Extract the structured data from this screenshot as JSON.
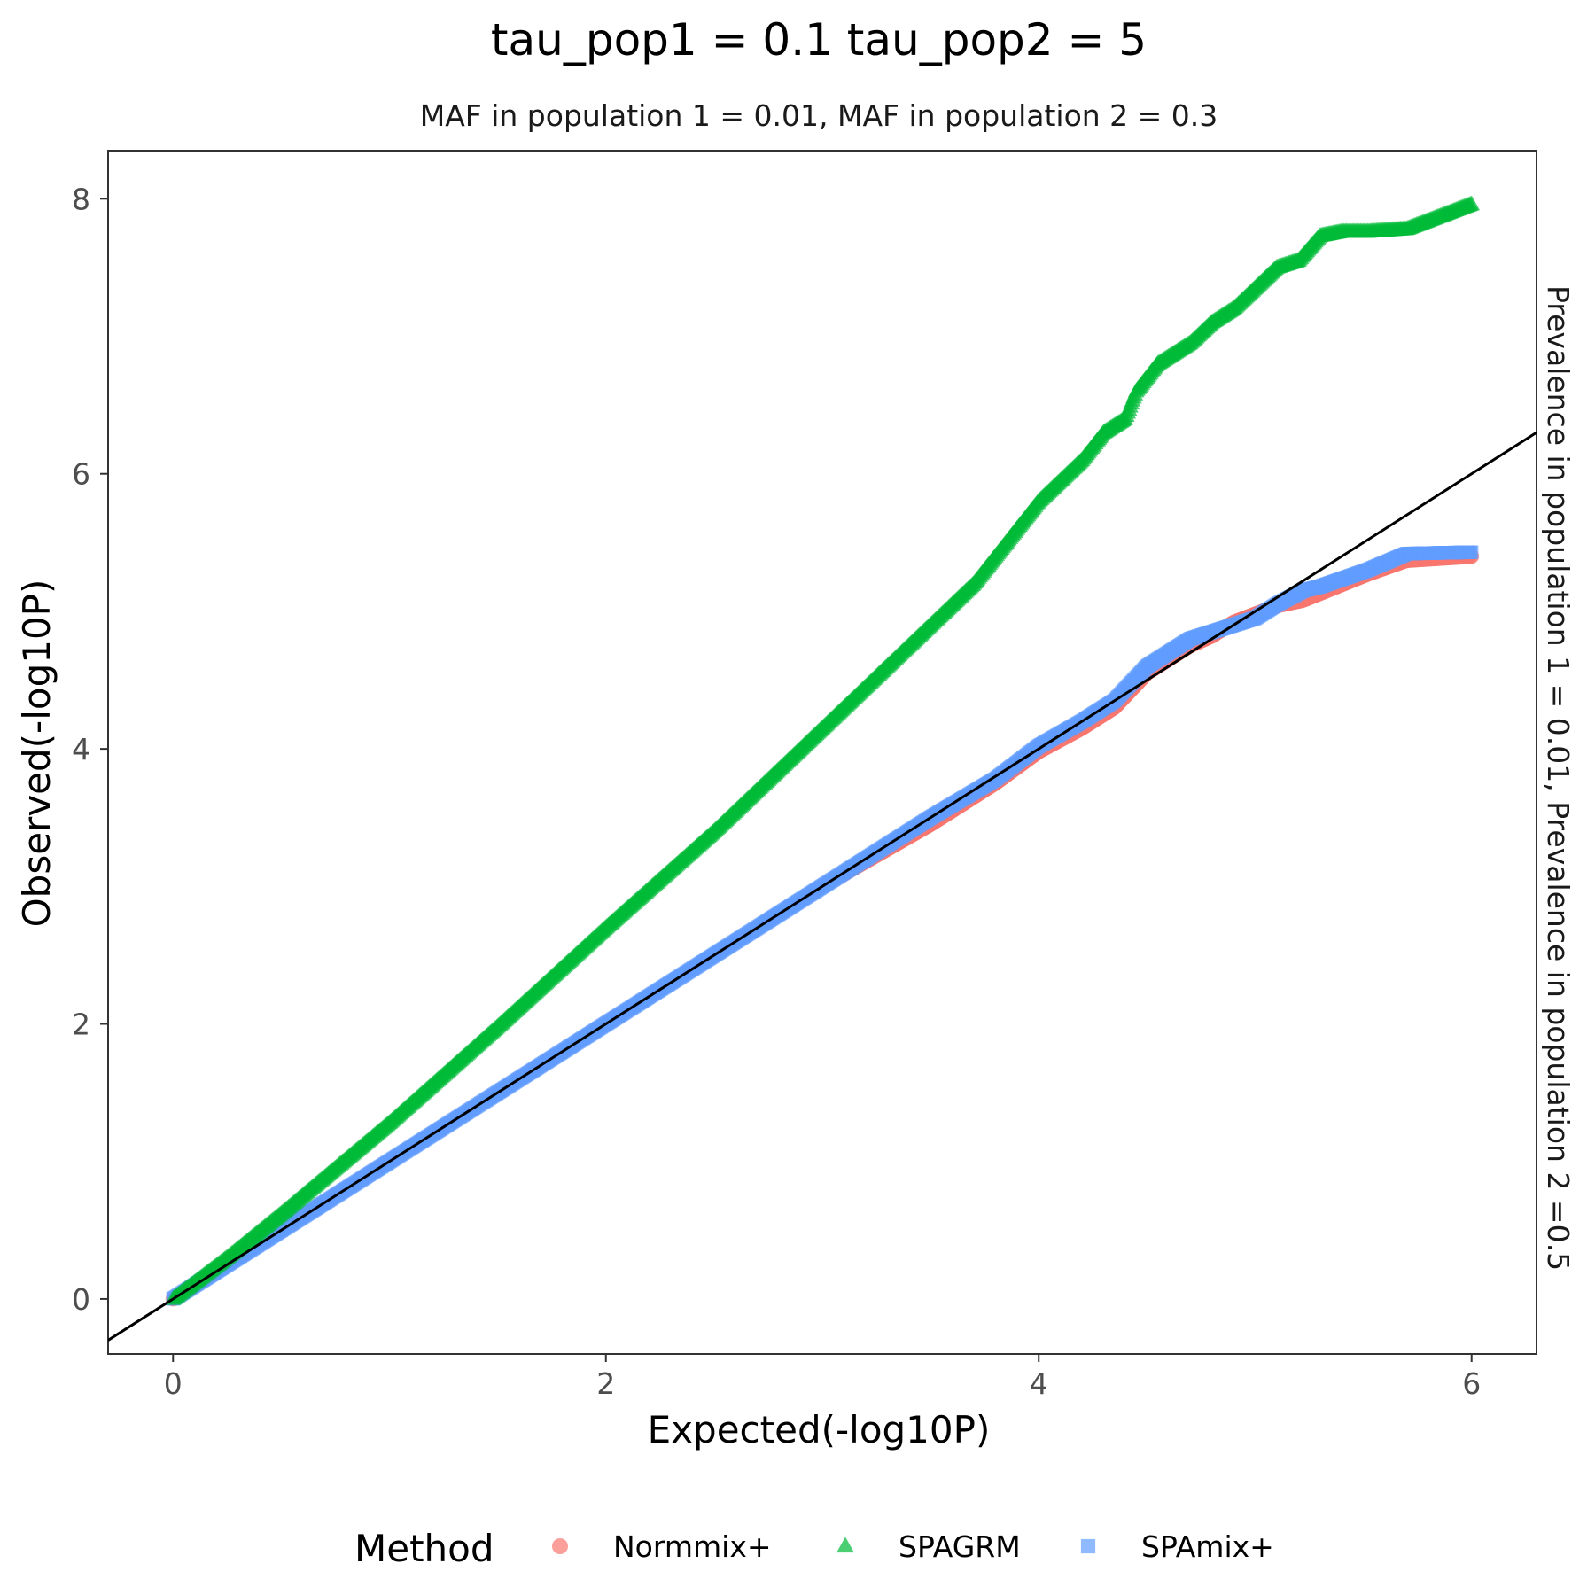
{
  "chart_data": {
    "type": "scatter",
    "title": "tau_pop1 = 0.1 tau_pop2 = 5",
    "subtitle": "MAF in population 1 = 0.01, MAF in population 2 = 0.3",
    "facet_label": "Prevalence in population 1 = 0.01, Prevalence in population 2 =0.5",
    "xlabel": "Expected(-log10P)",
    "ylabel": "Observed(-log10P)",
    "xlim": [
      -0.3,
      6.3
    ],
    "ylim": [
      -0.4,
      8.35
    ],
    "x_ticks": [
      0,
      2,
      4,
      6
    ],
    "y_ticks": [
      0,
      2,
      4,
      6,
      8
    ],
    "grid": false,
    "reference_line": {
      "slope": 1,
      "intercept": 0,
      "color": "#000000"
    },
    "legend": {
      "title": "Method",
      "position": "bottom"
    },
    "series": [
      {
        "name": "Normmix+",
        "shape": "circle",
        "color": "#F8766D",
        "points": [
          [
            0,
            0
          ],
          [
            0.25,
            0.25
          ],
          [
            0.5,
            0.5
          ],
          [
            1,
            1
          ],
          [
            1.5,
            1.5
          ],
          [
            2,
            2
          ],
          [
            2.5,
            2.5
          ],
          [
            3,
            3
          ],
          [
            3.5,
            3.45
          ],
          [
            3.8,
            3.75
          ],
          [
            4,
            3.98
          ],
          [
            4.2,
            4.15
          ],
          [
            4.35,
            4.3
          ],
          [
            4.5,
            4.55
          ],
          [
            4.6,
            4.65
          ],
          [
            4.7,
            4.75
          ],
          [
            4.8,
            4.82
          ],
          [
            4.9,
            4.92
          ],
          [
            5,
            4.98
          ],
          [
            5.1,
            5.04
          ],
          [
            5.22,
            5.08
          ],
          [
            5.3,
            5.13
          ],
          [
            5.52,
            5.27
          ],
          [
            5.7,
            5.37
          ],
          [
            6,
            5.4
          ]
        ]
      },
      {
        "name": "SPAGRM",
        "shape": "triangle",
        "color": "#00BA38",
        "points": [
          [
            0,
            0
          ],
          [
            0.25,
            0.3
          ],
          [
            0.5,
            0.62
          ],
          [
            1,
            1.28
          ],
          [
            1.5,
            1.98
          ],
          [
            2,
            2.7
          ],
          [
            2.5,
            3.4
          ],
          [
            3,
            4.15
          ],
          [
            3.3,
            4.6
          ],
          [
            3.5,
            4.9
          ],
          [
            3.7,
            5.2
          ],
          [
            3.8,
            5.4
          ],
          [
            3.9,
            5.6
          ],
          [
            4,
            5.8
          ],
          [
            4.2,
            6.1
          ],
          [
            4.3,
            6.3
          ],
          [
            4.4,
            6.4
          ],
          [
            4.45,
            6.6
          ],
          [
            4.55,
            6.8
          ],
          [
            4.7,
            6.95
          ],
          [
            4.8,
            7.1
          ],
          [
            4.9,
            7.2
          ],
          [
            5,
            7.35
          ],
          [
            5.1,
            7.5
          ],
          [
            5.2,
            7.55
          ],
          [
            5.3,
            7.73
          ],
          [
            5.4,
            7.76
          ],
          [
            5.52,
            7.76
          ],
          [
            5.7,
            7.78
          ],
          [
            6,
            7.96
          ]
        ]
      },
      {
        "name": "SPAmix+",
        "shape": "square",
        "color": "#619CFF",
        "points": [
          [
            0,
            0
          ],
          [
            0.25,
            0.25
          ],
          [
            0.5,
            0.5
          ],
          [
            1,
            1
          ],
          [
            1.5,
            1.5
          ],
          [
            2,
            2
          ],
          [
            2.5,
            2.5
          ],
          [
            3,
            3
          ],
          [
            3.5,
            3.5
          ],
          [
            3.8,
            3.78
          ],
          [
            4,
            4.02
          ],
          [
            4.2,
            4.2
          ],
          [
            4.35,
            4.35
          ],
          [
            4.5,
            4.6
          ],
          [
            4.6,
            4.7
          ],
          [
            4.7,
            4.8
          ],
          [
            4.8,
            4.85
          ],
          [
            4.9,
            4.9
          ],
          [
            5,
            4.95
          ],
          [
            5.1,
            5.05
          ],
          [
            5.22,
            5.15
          ],
          [
            5.3,
            5.18
          ],
          [
            5.52,
            5.3
          ],
          [
            5.7,
            5.42
          ],
          [
            6,
            5.43
          ]
        ]
      }
    ]
  }
}
